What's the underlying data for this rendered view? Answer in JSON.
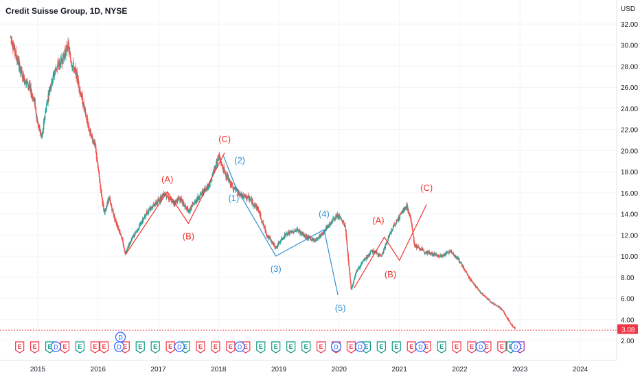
{
  "header": {
    "title": "Credit Suisse Group, 1D, NYSE",
    "currency": "USD"
  },
  "colors": {
    "candle_up": "#26a69a",
    "candle_down": "#ef5350",
    "wave_red": "#f0302c",
    "wave_blue": "#2f8fd0",
    "grid": "#f0f3fa",
    "axis_text": "#131722",
    "price_badge_bg": "#f23645",
    "price_badge_text": "#ffffff",
    "earnings_red": "#f23645",
    "earnings_green": "#089981",
    "dividend_blue": "#2962ff",
    "split_orange": "#ff9800",
    "future_purple": "#9c27b0"
  },
  "chart_data": {
    "type": "candlestick",
    "title": "Credit Suisse Group, 1D, NYSE",
    "xlabel": "",
    "ylabel": "USD",
    "x_ticks": [
      "2015",
      "2016",
      "2017",
      "2018",
      "2019",
      "2020",
      "2021",
      "2022",
      "2023",
      "2024"
    ],
    "y_ticks": [
      "2.00",
      "4.00",
      "6.00",
      "8.00",
      "10.00",
      "12.00",
      "14.00",
      "16.00",
      "18.00",
      "20.00",
      "22.00",
      "24.00",
      "26.00",
      "28.00",
      "30.00",
      "32.00"
    ],
    "ylim": [
      1.0,
      33.0
    ],
    "xlim": [
      2014.55,
      2024.85
    ],
    "grid": true,
    "last_price": "3.08",
    "price_path": [
      [
        2014.55,
        30.8
      ],
      [
        2014.65,
        28.8
      ],
      [
        2014.75,
        27.0
      ],
      [
        2014.85,
        26.2
      ],
      [
        2014.95,
        24.5
      ],
      [
        2015.0,
        22.5
      ],
      [
        2015.07,
        21.2
      ],
      [
        2015.12,
        23.5
      ],
      [
        2015.2,
        26.0
      ],
      [
        2015.3,
        27.8
      ],
      [
        2015.4,
        28.5
      ],
      [
        2015.5,
        30.0
      ],
      [
        2015.55,
        28.5
      ],
      [
        2015.65,
        27.0
      ],
      [
        2015.75,
        24.5
      ],
      [
        2015.85,
        22.0
      ],
      [
        2015.95,
        20.5
      ],
      [
        2016.03,
        17.0
      ],
      [
        2016.1,
        14.0
      ],
      [
        2016.18,
        15.5
      ],
      [
        2016.28,
        13.5
      ],
      [
        2016.38,
        12.0
      ],
      [
        2016.45,
        10.3
      ],
      [
        2016.55,
        11.5
      ],
      [
        2016.7,
        13.0
      ],
      [
        2016.85,
        14.5
      ],
      [
        2017.0,
        15.2
      ],
      [
        2017.1,
        16.0
      ],
      [
        2017.25,
        15.0
      ],
      [
        2017.35,
        15.5
      ],
      [
        2017.5,
        14.2
      ],
      [
        2017.65,
        15.5
      ],
      [
        2017.85,
        16.8
      ],
      [
        2018.0,
        19.5
      ],
      [
        2018.08,
        18.2
      ],
      [
        2018.2,
        16.8
      ],
      [
        2018.35,
        15.8
      ],
      [
        2018.5,
        15.5
      ],
      [
        2018.65,
        14.5
      ],
      [
        2018.8,
        12.0
      ],
      [
        2018.95,
        10.8
      ],
      [
        2019.1,
        12.0
      ],
      [
        2019.3,
        12.5
      ],
      [
        2019.45,
        11.8
      ],
      [
        2019.6,
        11.5
      ],
      [
        2019.75,
        12.3
      ],
      [
        2019.9,
        13.5
      ],
      [
        2020.0,
        13.8
      ],
      [
        2020.1,
        12.8
      ],
      [
        2020.2,
        6.8
      ],
      [
        2020.28,
        8.5
      ],
      [
        2020.4,
        9.5
      ],
      [
        2020.55,
        10.5
      ],
      [
        2020.7,
        10.0
      ],
      [
        2020.85,
        12.2
      ],
      [
        2021.0,
        13.8
      ],
      [
        2021.12,
        14.8
      ],
      [
        2021.2,
        13.2
      ],
      [
        2021.25,
        11.0
      ],
      [
        2021.4,
        10.5
      ],
      [
        2021.55,
        10.2
      ],
      [
        2021.7,
        10.0
      ],
      [
        2021.85,
        10.5
      ],
      [
        2022.0,
        9.5
      ],
      [
        2022.15,
        8.0
      ],
      [
        2022.35,
        6.5
      ],
      [
        2022.55,
        5.5
      ],
      [
        2022.7,
        5.0
      ],
      [
        2022.82,
        3.8
      ],
      [
        2022.92,
        3.08
      ]
    ],
    "wave_lines": [
      {
        "color": "red",
        "points": [
          [
            2016.45,
            10.1
          ],
          [
            2017.15,
            16.1
          ],
          [
            2017.5,
            13.1
          ],
          [
            2018.1,
            19.8
          ]
        ]
      },
      {
        "color": "blue",
        "points": [
          [
            2018.08,
            19.5
          ],
          [
            2018.28,
            16.6
          ],
          [
            2018.95,
            10.0
          ],
          [
            2019.75,
            12.5
          ],
          [
            2019.98,
            6.3
          ]
        ]
      },
      {
        "color": "red",
        "points": [
          [
            2020.25,
            7.0
          ],
          [
            2020.75,
            11.8
          ],
          [
            2021.0,
            9.6
          ],
          [
            2021.45,
            14.9
          ]
        ]
      }
    ],
    "annotations": [
      {
        "text": "(A)",
        "color": "red",
        "x": 2017.15,
        "y": 17.0
      },
      {
        "text": "(B)",
        "color": "red",
        "x": 2017.5,
        "y": 11.6
      },
      {
        "text": "(C)",
        "color": "red",
        "x": 2018.1,
        "y": 20.8
      },
      {
        "text": "(1)",
        "color": "blue",
        "x": 2018.25,
        "y": 15.2
      },
      {
        "text": "(2)",
        "color": "blue",
        "x": 2018.35,
        "y": 18.8
      },
      {
        "text": "(3)",
        "color": "blue",
        "x": 2018.95,
        "y": 8.5
      },
      {
        "text": "(4)",
        "color": "blue",
        "x": 2019.75,
        "y": 13.7
      },
      {
        "text": "(5)",
        "color": "blue",
        "x": 2020.02,
        "y": 4.8
      },
      {
        "text": "(A)",
        "color": "red",
        "x": 2020.65,
        "y": 13.1
      },
      {
        "text": "(B)",
        "color": "red",
        "x": 2020.85,
        "y": 8.0
      },
      {
        "text": "(C)",
        "color": "red",
        "x": 2021.45,
        "y": 16.2
      }
    ],
    "event_markers": [
      {
        "x": 2014.7,
        "label": "E",
        "kind": "earnings-red"
      },
      {
        "x": 2014.95,
        "label": "E",
        "kind": "earnings-red"
      },
      {
        "x": 2015.2,
        "label": "E",
        "kind": "earnings-green"
      },
      {
        "x": 2015.45,
        "label": "E",
        "kind": "earnings-red"
      },
      {
        "x": 2015.7,
        "label": "E",
        "kind": "earnings-green"
      },
      {
        "x": 2015.95,
        "label": "E",
        "kind": "earnings-red"
      },
      {
        "x": 2016.1,
        "label": "E",
        "kind": "earnings-red"
      },
      {
        "x": 2016.45,
        "label": "E",
        "kind": "earnings-red"
      },
      {
        "x": 2016.7,
        "label": "E",
        "kind": "earnings-green"
      },
      {
        "x": 2016.95,
        "label": "E",
        "kind": "earnings-green"
      },
      {
        "x": 2017.2,
        "label": "E",
        "kind": "earnings-red"
      },
      {
        "x": 2017.45,
        "label": "E",
        "kind": "earnings-green"
      },
      {
        "x": 2017.7,
        "label": "E",
        "kind": "earnings-red"
      },
      {
        "x": 2017.95,
        "label": "E",
        "kind": "earnings-red"
      },
      {
        "x": 2018.2,
        "label": "E",
        "kind": "earnings-red"
      },
      {
        "x": 2018.45,
        "label": "E",
        "kind": "earnings-red"
      },
      {
        "x": 2018.7,
        "label": "E",
        "kind": "earnings-green"
      },
      {
        "x": 2018.95,
        "label": "E",
        "kind": "earnings-green"
      },
      {
        "x": 2019.2,
        "label": "E",
        "kind": "earnings-green"
      },
      {
        "x": 2019.45,
        "label": "E",
        "kind": "earnings-green"
      },
      {
        "x": 2019.7,
        "label": "E",
        "kind": "earnings-red"
      },
      {
        "x": 2019.95,
        "label": "E",
        "kind": "earnings-red"
      },
      {
        "x": 2020.2,
        "label": "E",
        "kind": "earnings-red"
      },
      {
        "x": 2020.45,
        "label": "E",
        "kind": "earnings-green"
      },
      {
        "x": 2020.7,
        "label": "E",
        "kind": "earnings-green"
      },
      {
        "x": 2020.95,
        "label": "E",
        "kind": "earnings-green"
      },
      {
        "x": 2021.2,
        "label": "E",
        "kind": "earnings-red"
      },
      {
        "x": 2021.45,
        "label": "E",
        "kind": "earnings-red"
      },
      {
        "x": 2021.7,
        "label": "E",
        "kind": "earnings-green"
      },
      {
        "x": 2021.95,
        "label": "E",
        "kind": "earnings-red"
      },
      {
        "x": 2022.2,
        "label": "E",
        "kind": "earnings-red"
      },
      {
        "x": 2022.45,
        "label": "E",
        "kind": "earnings-red"
      },
      {
        "x": 2022.7,
        "label": "E",
        "kind": "earnings-red"
      },
      {
        "x": 2022.85,
        "label": "E",
        "kind": "earnings-green"
      },
      {
        "x": 2023.0,
        "label": "E",
        "kind": "future-purple"
      }
    ],
    "dividend_markers": [
      {
        "x": 2015.3,
        "label": "D"
      },
      {
        "x": 2016.35,
        "label": "D"
      },
      {
        "x": 2017.35,
        "label": "D"
      },
      {
        "x": 2018.35,
        "label": "D"
      },
      {
        "x": 2019.95,
        "label": "D"
      },
      {
        "x": 2020.35,
        "label": "D"
      },
      {
        "x": 2021.35,
        "label": "D"
      },
      {
        "x": 2022.35,
        "label": "D"
      },
      {
        "x": 2022.93,
        "label": "D"
      }
    ],
    "standalone_dividend_marker": {
      "x": 2016.35,
      "label": "D"
    }
  }
}
